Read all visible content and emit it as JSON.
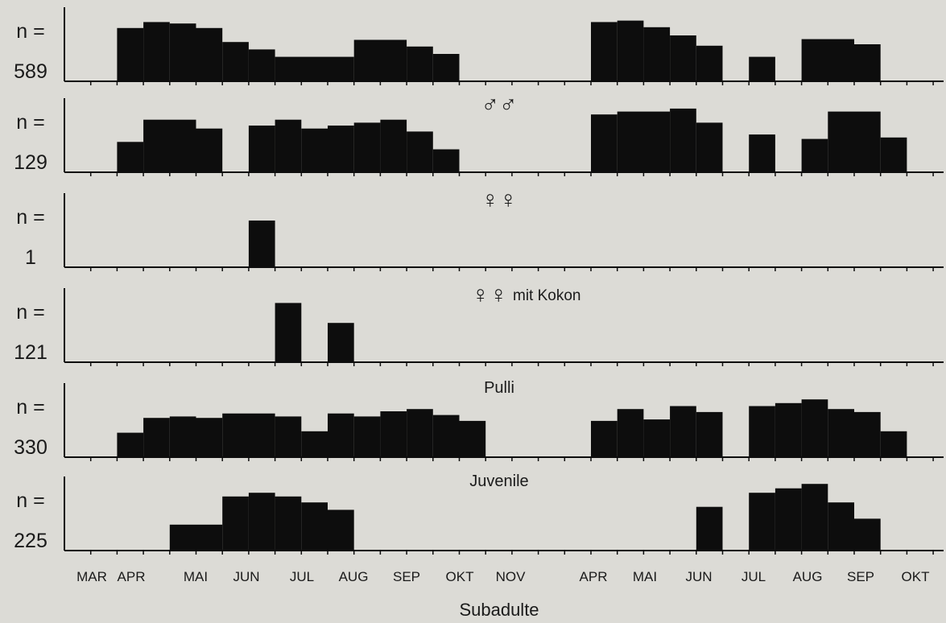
{
  "chart_data": {
    "type": "bar",
    "x_tick_labels": [
      "MAR",
      "APR",
      "MAI",
      "JUN",
      "JUL",
      "AUG",
      "SEP",
      "OKT",
      "NOV",
      "APR",
      "MAI",
      "JUN",
      "JUL",
      "AUG",
      "SEP",
      "OKT"
    ],
    "xlabel": "",
    "panels": [
      {
        "count_prefix": "n =",
        "count": "589",
        "label": "",
        "bars": [
          {
            "from": 2,
            "to": 3,
            "value": 0.72
          },
          {
            "from": 3,
            "to": 4,
            "value": 0.8
          },
          {
            "from": 4,
            "to": 5,
            "value": 0.78
          },
          {
            "from": 5,
            "to": 6,
            "value": 0.72
          },
          {
            "from": 6,
            "to": 7,
            "value": 0.53
          },
          {
            "from": 7,
            "to": 8,
            "value": 0.43
          },
          {
            "from": 8,
            "to": 11,
            "value": 0.33
          },
          {
            "from": 11,
            "to": 13,
            "value": 0.56
          },
          {
            "from": 13,
            "to": 14,
            "value": 0.47
          },
          {
            "from": 14,
            "to": 15,
            "value": 0.37
          },
          {
            "from": 20,
            "to": 21,
            "value": 0.8
          },
          {
            "from": 21,
            "to": 22,
            "value": 0.82
          },
          {
            "from": 22,
            "to": 23,
            "value": 0.73
          },
          {
            "from": 23,
            "to": 24,
            "value": 0.62
          },
          {
            "from": 24,
            "to": 25,
            "value": 0.48
          },
          {
            "from": 26,
            "to": 27,
            "value": 0.33
          },
          {
            "from": 28,
            "to": 30,
            "value": 0.57
          },
          {
            "from": 30,
            "to": 31,
            "value": 0.5
          }
        ]
      },
      {
        "count_prefix": "n =",
        "count": "129",
        "label": "♂♂",
        "label_suffix": "",
        "bars": [
          {
            "from": 2,
            "to": 3,
            "value": 0.41
          },
          {
            "from": 3,
            "to": 5,
            "value": 0.71
          },
          {
            "from": 5,
            "to": 6,
            "value": 0.59
          },
          {
            "from": 7,
            "to": 8,
            "value": 0.63
          },
          {
            "from": 8,
            "to": 9,
            "value": 0.71
          },
          {
            "from": 9,
            "to": 10,
            "value": 0.59
          },
          {
            "from": 10,
            "to": 11,
            "value": 0.63
          },
          {
            "from": 11,
            "to": 12,
            "value": 0.67
          },
          {
            "from": 12,
            "to": 13,
            "value": 0.71
          },
          {
            "from": 13,
            "to": 14,
            "value": 0.55
          },
          {
            "from": 14,
            "to": 15,
            "value": 0.31
          },
          {
            "from": 20,
            "to": 21,
            "value": 0.78
          },
          {
            "from": 21,
            "to": 23,
            "value": 0.82
          },
          {
            "from": 23,
            "to": 24,
            "value": 0.86
          },
          {
            "from": 24,
            "to": 25,
            "value": 0.67
          },
          {
            "from": 26,
            "to": 27,
            "value": 0.51
          },
          {
            "from": 28,
            "to": 29,
            "value": 0.45
          },
          {
            "from": 29,
            "to": 31,
            "value": 0.82
          },
          {
            "from": 31,
            "to": 32,
            "value": 0.47
          }
        ]
      },
      {
        "count_prefix": "n =",
        "count": "1",
        "label": "♀♀",
        "label_suffix": "",
        "bars": [
          {
            "from": 7,
            "to": 8,
            "value": 0.63
          }
        ]
      },
      {
        "count_prefix": "n =",
        "count": "121",
        "label": "♀♀",
        "label_suffix": "mit Kokon",
        "bars": [
          {
            "from": 8,
            "to": 9,
            "value": 0.8
          },
          {
            "from": 10,
            "to": 11,
            "value": 0.53
          }
        ]
      },
      {
        "count_prefix": "n =",
        "count": "330",
        "label": "Pulli",
        "label_suffix": "",
        "bars": [
          {
            "from": 2,
            "to": 3,
            "value": 0.33
          },
          {
            "from": 3,
            "to": 4,
            "value": 0.53
          },
          {
            "from": 4,
            "to": 5,
            "value": 0.55
          },
          {
            "from": 5,
            "to": 6,
            "value": 0.53
          },
          {
            "from": 6,
            "to": 8,
            "value": 0.59
          },
          {
            "from": 8,
            "to": 9,
            "value": 0.55
          },
          {
            "from": 9,
            "to": 10,
            "value": 0.35
          },
          {
            "from": 10,
            "to": 11,
            "value": 0.59
          },
          {
            "from": 11,
            "to": 12,
            "value": 0.55
          },
          {
            "from": 12,
            "to": 13,
            "value": 0.62
          },
          {
            "from": 13,
            "to": 14,
            "value": 0.65
          },
          {
            "from": 14,
            "to": 15,
            "value": 0.57
          },
          {
            "from": 15,
            "to": 16,
            "value": 0.49
          },
          {
            "from": 20,
            "to": 21,
            "value": 0.49
          },
          {
            "from": 21,
            "to": 22,
            "value": 0.65
          },
          {
            "from": 22,
            "to": 23,
            "value": 0.51
          },
          {
            "from": 23,
            "to": 24,
            "value": 0.69
          },
          {
            "from": 24,
            "to": 25,
            "value": 0.61
          },
          {
            "from": 26,
            "to": 27,
            "value": 0.69
          },
          {
            "from": 27,
            "to": 28,
            "value": 0.73
          },
          {
            "from": 28,
            "to": 29,
            "value": 0.78
          },
          {
            "from": 29,
            "to": 30,
            "value": 0.65
          },
          {
            "from": 30,
            "to": 31,
            "value": 0.61
          },
          {
            "from": 31,
            "to": 32,
            "value": 0.35
          }
        ]
      },
      {
        "count_prefix": "n =",
        "count": "225",
        "label": "Juvenile",
        "label_suffix": "",
        "bars": [
          {
            "from": 4,
            "to": 6,
            "value": 0.35
          },
          {
            "from": 6,
            "to": 7,
            "value": 0.73
          },
          {
            "from": 7,
            "to": 8,
            "value": 0.78
          },
          {
            "from": 8,
            "to": 9,
            "value": 0.73
          },
          {
            "from": 9,
            "to": 10,
            "value": 0.65
          },
          {
            "from": 10,
            "to": 11,
            "value": 0.55
          },
          {
            "from": 24,
            "to": 25,
            "value": 0.59
          },
          {
            "from": 26,
            "to": 27,
            "value": 0.78
          },
          {
            "from": 27,
            "to": 28,
            "value": 0.84
          },
          {
            "from": 28,
            "to": 29,
            "value": 0.9
          },
          {
            "from": 29,
            "to": 30,
            "value": 0.65
          },
          {
            "from": 30,
            "to": 31,
            "value": 0.43
          }
        ]
      }
    ],
    "footer_label": "Subadulte",
    "grid": false
  }
}
